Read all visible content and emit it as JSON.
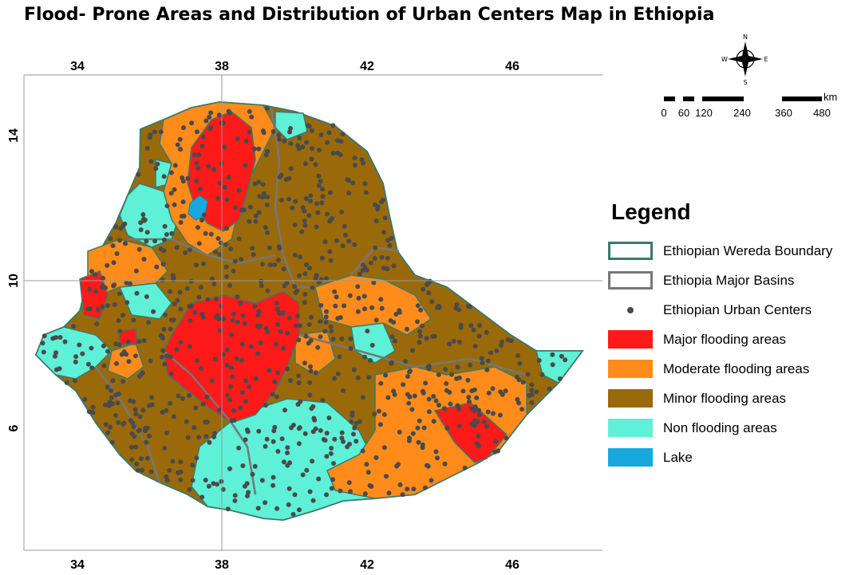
{
  "title": "Flood- Prone Areas  and  Distribution of Urban Centers  Map in Ethiopia",
  "axes": {
    "x_ticks": [
      "34",
      "38",
      "42",
      "46"
    ],
    "y_ticks": [
      "14",
      "10",
      "6"
    ]
  },
  "north_arrow": {
    "n": "N",
    "s": "S",
    "e": "E",
    "w": "W",
    "icon": "compass-rose-icon"
  },
  "scale_bar": {
    "unit": "km",
    "labels": [
      "0",
      "60",
      "120",
      "240",
      "360",
      "480"
    ]
  },
  "legend": {
    "title": "Legend",
    "items": [
      {
        "label": "Ethiopian Wereda Boundary",
        "kind": "outline",
        "color": "#3b7a68"
      },
      {
        "label": "Ethiopia Major Basins",
        "kind": "outline",
        "color": "#777777"
      },
      {
        "label": "Ethiopian Urban Centers",
        "kind": "dot",
        "color": "#4a4a4a"
      },
      {
        "label": "Major flooding areas",
        "kind": "fill",
        "color": "#ff1a1a"
      },
      {
        "label": "Moderate flooding areas",
        "kind": "fill",
        "color": "#ff8c1a"
      },
      {
        "label": "Minor flooding areas",
        "kind": "fill",
        "color": "#9a6a0a"
      },
      {
        "label": "Non flooding areas",
        "kind": "fill",
        "color": "#5ff0d8"
      },
      {
        "label": "Lake",
        "kind": "fill",
        "color": "#18a8e0"
      }
    ]
  }
}
